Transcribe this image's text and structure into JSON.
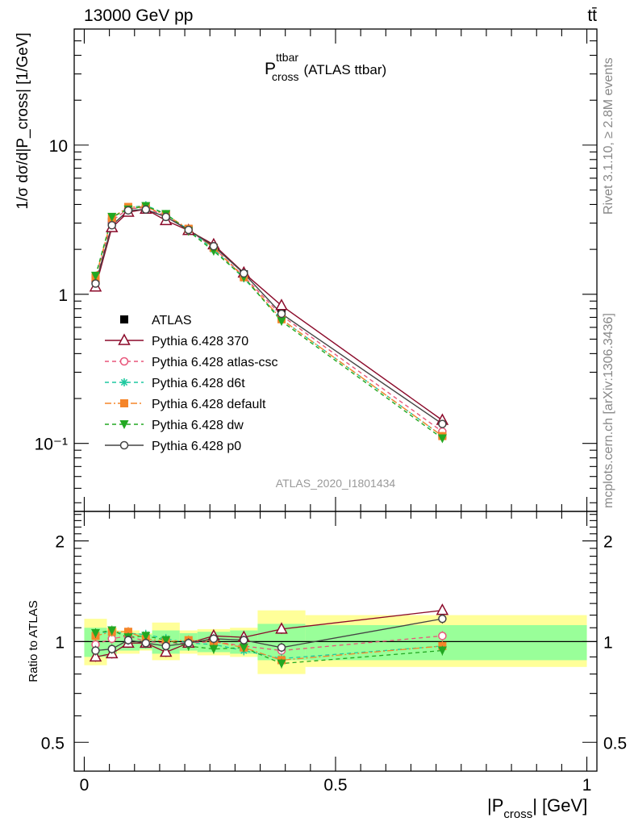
{
  "header": {
    "energy_label": "13000 GeV pp",
    "process_label": "tt̄",
    "plot_title_main": "P",
    "plot_title_sup": "ttbar",
    "plot_title_sub": "cross",
    "plot_title_suffix": "(ATLAS ttbar)",
    "analysis_id": "ATLAS_2020_I1801434"
  },
  "side_labels": {
    "rivet": "Rivet 3.1.10, ≥ 2.8M events",
    "mcplots": "mcplots.cern.ch [arXiv:1306.3436]"
  },
  "axes": {
    "ylabel_main": "1/σ dσ/d|P_cross| [1/GeV]",
    "ylabel_ratio": "Ratio to ATLAS",
    "xlabel_main": "|P",
    "xlabel_sub": "cross",
    "xlabel_suffix": "| [GeV]"
  },
  "chart_data": [
    {
      "type": "line",
      "panel": "main",
      "x_scale": "linear",
      "y_scale": "log",
      "xlim": [
        -0.02,
        1.02
      ],
      "ylim": [
        0.035,
        60
      ],
      "y_tick_labels": [
        "10⁻¹",
        "1",
        "10"
      ],
      "x": [
        0.0225,
        0.055,
        0.0875,
        0.1225,
        0.1625,
        0.2075,
        0.2575,
        0.3175,
        0.3925,
        0.7125
      ],
      "series": [
        {
          "name": "ATLAS",
          "color": "#000000",
          "marker": "square-filled",
          "line": "none",
          "values": [
            1.25,
            3.05,
            3.6,
            3.75,
            3.4,
            2.72,
            2.05,
            1.36,
            0.77,
            0.115
          ]
        },
        {
          "name": "Pythia 6.428 370",
          "color": "#8b0a2a",
          "marker": "triangle-open",
          "line": "solid",
          "values": [
            1.12,
            2.8,
            3.55,
            3.72,
            3.12,
            2.68,
            2.15,
            1.39,
            0.84,
            0.143
          ]
        },
        {
          "name": "Pythia 6.428 atlas-csc",
          "color": "#e8557a",
          "marker": "circle-open",
          "line": "dashed",
          "values": [
            1.22,
            3.1,
            3.75,
            3.8,
            3.35,
            2.7,
            2.05,
            1.32,
            0.72,
            0.12
          ]
        },
        {
          "name": "Pythia 6.428 d6t",
          "color": "#1fc9a0",
          "marker": "star",
          "line": "dashed",
          "values": [
            1.33,
            3.25,
            3.8,
            3.95,
            3.45,
            2.7,
            2.0,
            1.28,
            0.68,
            0.112
          ]
        },
        {
          "name": "Pythia 6.428 default",
          "color": "#f5852a",
          "marker": "square-filled",
          "line": "dashdot",
          "values": [
            1.3,
            3.25,
            3.85,
            3.85,
            3.4,
            2.75,
            2.05,
            1.3,
            0.68,
            0.112
          ]
        },
        {
          "name": "Pythia 6.428 dw",
          "color": "#22a822",
          "marker": "triangle-down-filled",
          "line": "dashed",
          "values": [
            1.33,
            3.3,
            3.7,
            3.9,
            3.45,
            2.65,
            1.95,
            1.3,
            0.66,
            0.108
          ]
        },
        {
          "name": "Pythia 6.428 p0",
          "color": "#444444",
          "marker": "circle-open",
          "line": "solid",
          "values": [
            1.18,
            2.9,
            3.65,
            3.7,
            3.3,
            2.7,
            2.1,
            1.38,
            0.74,
            0.135
          ]
        }
      ],
      "legend": "left-middle"
    },
    {
      "type": "line",
      "panel": "ratio",
      "x_scale": "linear",
      "y_scale": "log",
      "xlim": [
        -0.02,
        1.02
      ],
      "ylim": [
        0.41,
        2.45
      ],
      "y_ticks": [
        0.5,
        1,
        2
      ],
      "y_tick_labels": [
        "0.5",
        "1",
        "2"
      ],
      "x_ticks": [
        0,
        0.5,
        1
      ],
      "x_tick_labels": [
        "0",
        "0.5",
        "1"
      ],
      "bins": [
        [
          0.0,
          0.045
        ],
        [
          0.045,
          0.065
        ],
        [
          0.065,
          0.11
        ],
        [
          0.11,
          0.135
        ],
        [
          0.135,
          0.19
        ],
        [
          0.19,
          0.225
        ],
        [
          0.225,
          0.29
        ],
        [
          0.29,
          0.345
        ],
        [
          0.345,
          0.44
        ],
        [
          0.44,
          1.0
        ]
      ],
      "band_inner": [
        [
          0.9,
          1.1
        ],
        [
          0.92,
          1.08
        ],
        [
          0.94,
          1.06
        ],
        [
          0.95,
          1.05
        ],
        [
          0.92,
          1.08
        ],
        [
          0.94,
          1.06
        ],
        [
          0.93,
          1.07
        ],
        [
          0.92,
          1.08
        ],
        [
          0.88,
          1.13
        ],
        [
          0.88,
          1.12
        ]
      ],
      "band_outer": [
        [
          0.85,
          1.17
        ],
        [
          0.9,
          1.1
        ],
        [
          0.92,
          1.08
        ],
        [
          0.94,
          1.06
        ],
        [
          0.88,
          1.14
        ],
        [
          0.92,
          1.08
        ],
        [
          0.91,
          1.09
        ],
        [
          0.9,
          1.1
        ],
        [
          0.8,
          1.24
        ],
        [
          0.84,
          1.2
        ]
      ],
      "x": [
        0.0225,
        0.055,
        0.0875,
        0.1225,
        0.1625,
        0.2075,
        0.2575,
        0.3175,
        0.3925,
        0.7125
      ],
      "series": [
        {
          "name": "Pythia 6.428 370",
          "color": "#8b0a2a",
          "marker": "triangle-open",
          "line": "solid",
          "values": [
            0.9,
            0.92,
            0.99,
            0.99,
            0.93,
            0.99,
            1.04,
            1.03,
            1.09,
            1.24
          ]
        },
        {
          "name": "Pythia 6.428 atlas-csc",
          "color": "#e8557a",
          "marker": "circle-open",
          "line": "dashed",
          "values": [
            0.98,
            1.02,
            1.04,
            1.0,
            0.99,
            0.99,
            1.0,
            0.97,
            0.94,
            1.04
          ]
        },
        {
          "name": "Pythia 6.428 d6t",
          "color": "#1fc9a0",
          "marker": "star",
          "line": "dashed",
          "values": [
            1.06,
            1.07,
            1.06,
            1.05,
            1.02,
            0.99,
            0.98,
            0.94,
            0.89,
            0.97
          ]
        },
        {
          "name": "Pythia 6.428 default",
          "color": "#f5852a",
          "marker": "square-filled",
          "line": "dashdot",
          "values": [
            1.04,
            1.07,
            1.07,
            1.02,
            1.0,
            1.01,
            1.0,
            0.96,
            0.88,
            0.97
          ]
        },
        {
          "name": "Pythia 6.428 dw",
          "color": "#22a822",
          "marker": "triangle-down-filled",
          "line": "dashed",
          "values": [
            1.06,
            1.08,
            1.03,
            1.04,
            1.01,
            0.97,
            0.95,
            0.96,
            0.86,
            0.94
          ]
        },
        {
          "name": "Pythia 6.428 p0",
          "color": "#444444",
          "marker": "circle-open",
          "line": "solid",
          "values": [
            0.94,
            0.95,
            1.01,
            0.99,
            0.97,
            0.99,
            1.02,
            1.01,
            0.96,
            1.17
          ]
        }
      ]
    }
  ]
}
